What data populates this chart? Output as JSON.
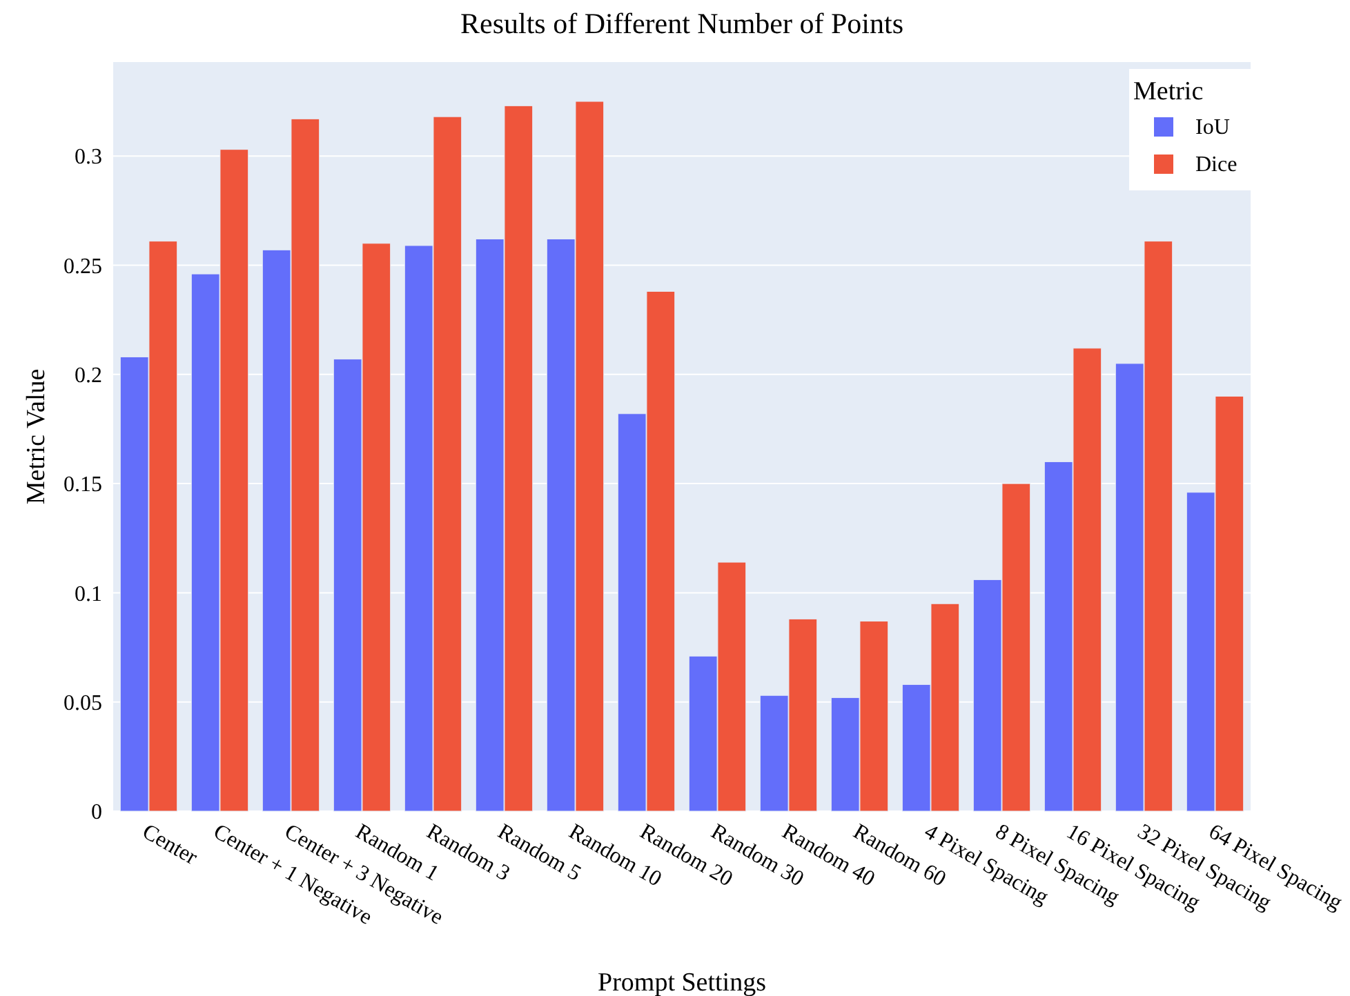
{
  "chart_data": {
    "type": "bar",
    "title": "Results of Different Number of Points",
    "xlabel": "Prompt Settings",
    "ylabel": "Metric Value",
    "legend_title": "Metric",
    "legend": "top right",
    "grid": "y",
    "categories": [
      "Center",
      "Center + 1 Negative",
      "Center + 3 Negative",
      "Random 1",
      "Random 3",
      "Random 5",
      "Random 10",
      "Random 20",
      "Random 30",
      "Random 40",
      "Random 60",
      "4 Pixel Spacing",
      "8 Pixel Spacing",
      "16 Pixel Spacing",
      "32 Pixel Spacing",
      "64 Pixel Spacing"
    ],
    "series": [
      {
        "name": "IoU",
        "color": "#636efa",
        "values": [
          0.208,
          0.246,
          0.257,
          0.207,
          0.259,
          0.262,
          0.262,
          0.182,
          0.071,
          0.053,
          0.052,
          0.058,
          0.106,
          0.16,
          0.205,
          0.146
        ]
      },
      {
        "name": "Dice",
        "color": "#ef553b",
        "values": [
          0.261,
          0.303,
          0.317,
          0.26,
          0.318,
          0.323,
          0.325,
          0.238,
          0.114,
          0.088,
          0.087,
          0.095,
          0.15,
          0.212,
          0.261,
          0.19
        ]
      }
    ],
    "ylim": [
      0,
      0.343
    ],
    "yticks": [
      {
        "value": 0,
        "label": "0"
      },
      0.05,
      0.1,
      0.15,
      0.2,
      0.25,
      0.3
    ]
  }
}
